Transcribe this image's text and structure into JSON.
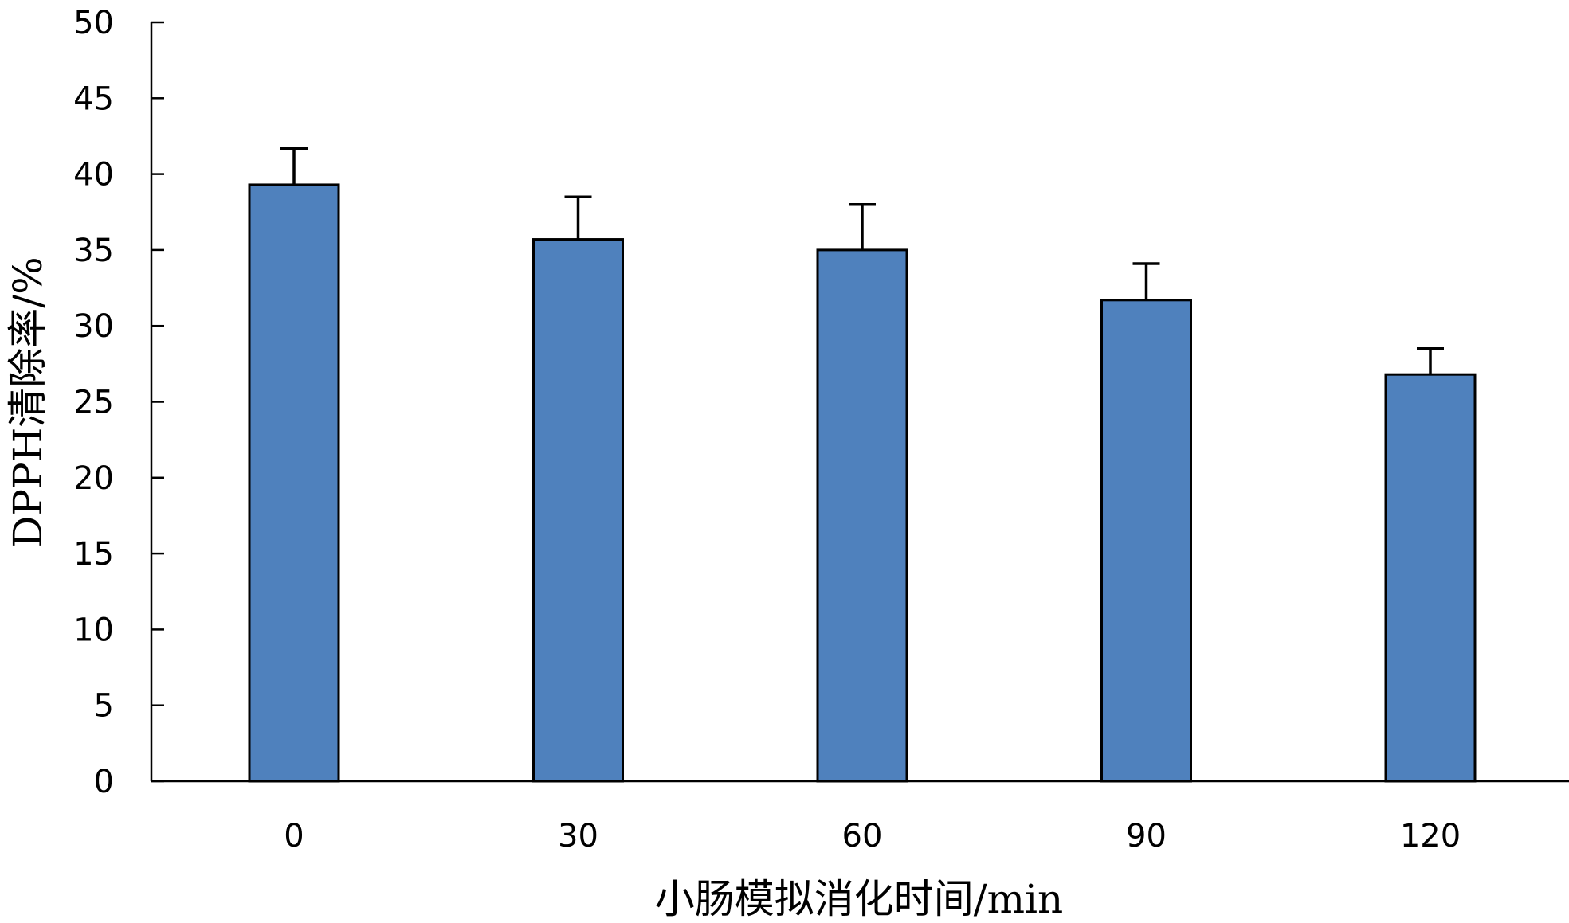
{
  "chart_data": {
    "type": "bar",
    "categories": [
      "0",
      "30",
      "60",
      "90",
      "120"
    ],
    "values": [
      39.3,
      35.7,
      35.0,
      31.7,
      26.8
    ],
    "error_bars": [
      2.4,
      2.8,
      3.0,
      2.4,
      1.7
    ],
    "xlabel": "小肠模拟消化时间/min",
    "ylabel": "DPPH清除率/%",
    "ylim": [
      0,
      50
    ],
    "yticks": [
      "0",
      "5",
      "10",
      "15",
      "20",
      "25",
      "30",
      "35",
      "40",
      "45",
      "50"
    ],
    "grid": false,
    "legend": "none",
    "colors": {
      "bar_fill": "#4F81BD",
      "bar_stroke": "#000000",
      "axis": "#000000"
    }
  }
}
